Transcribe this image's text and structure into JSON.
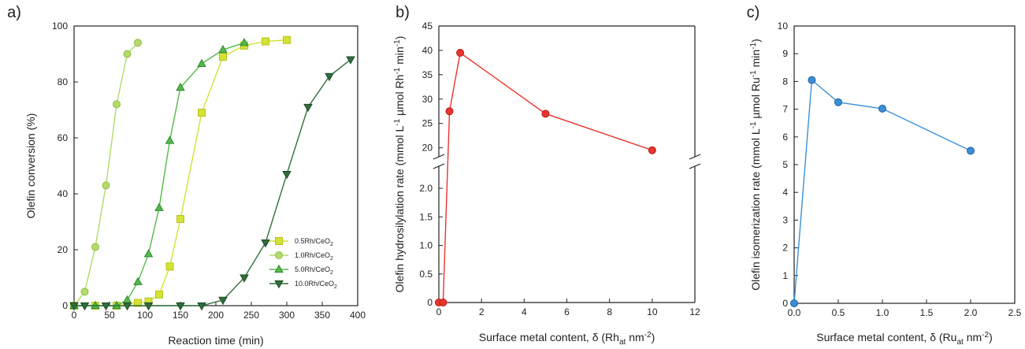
{
  "chart_data": [
    {
      "panel": "a)",
      "type": "line",
      "xlabel": "Reaction time (min)",
      "ylabel": "Olefin conversion (%)",
      "xlim": [
        0,
        400
      ],
      "ylim": [
        0,
        100
      ],
      "xticks": [
        "0",
        "50",
        "100",
        "150",
        "200",
        "250",
        "300",
        "350",
        "400"
      ],
      "yticks": [
        "0",
        "20",
        "40",
        "60",
        "80",
        "100"
      ],
      "legend_position": "bottom-right",
      "series": [
        {
          "name": "0.5Rh/CeO",
          "name_sub": "2",
          "color": "#d4e234",
          "edge": "#b5c41f",
          "marker": "square",
          "x": [
            0,
            30,
            60,
            90,
            105,
            120,
            135,
            150,
            180,
            210,
            240,
            270,
            300
          ],
          "y": [
            0,
            0,
            0,
            1,
            1.5,
            4,
            14,
            31,
            69,
            89,
            93,
            94.5,
            95
          ]
        },
        {
          "name": "1.0Rh/CeO",
          "name_sub": "2",
          "color": "#b4da6c",
          "edge": "#8fbf45",
          "marker": "circle",
          "x": [
            0,
            15,
            30,
            45,
            60,
            75,
            90
          ],
          "y": [
            0,
            5,
            21,
            43,
            72,
            90,
            94
          ]
        },
        {
          "name": "5.0Rh/CeO",
          "name_sub": "2",
          "color": "#54b948",
          "edge": "#2e8b34",
          "marker": "triangle-up",
          "x": [
            0,
            30,
            60,
            75,
            90,
            105,
            120,
            135,
            150,
            180,
            210,
            240
          ],
          "y": [
            0,
            0,
            0,
            2,
            8.5,
            18.5,
            35,
            59,
            78,
            86.5,
            91.5,
            94
          ]
        },
        {
          "name": "10.0Rh/CeO",
          "name_sub": "2",
          "color": "#2f6e3c",
          "edge": "#1c4a26",
          "marker": "triangle-down",
          "x": [
            0,
            15,
            45,
            75,
            105,
            150,
            180,
            210,
            240,
            270,
            300,
            330,
            360,
            390
          ],
          "y": [
            0,
            0,
            0,
            0,
            0,
            0,
            0,
            2,
            10,
            22.5,
            47,
            71,
            82,
            88
          ]
        }
      ]
    },
    {
      "panel": "b)",
      "type": "line",
      "xlabel": "Surface metal content, δ (Rh",
      "xlabel_sub": "at",
      "xlabel_end": " nm",
      "xlabel_sup": "-2",
      "xlabel_close": ")",
      "ylabel": "Olefin hydrosilylation rate (mmol L-1 µmol Rh-1 min-1)",
      "ylabel_parts": [
        "Olefin hydrosilylation rate (mmol L",
        "-1",
        " µmol Rh",
        "-1",
        " min",
        "-1",
        ")"
      ],
      "xlim": [
        0,
        12
      ],
      "ylim_lower": [
        0,
        2.4
      ],
      "ylim_upper": [
        18,
        45
      ],
      "broken_axis": true,
      "xticks": [
        "0",
        "2",
        "4",
        "6",
        "8",
        "10",
        "12"
      ],
      "yticks_lower": [
        "0",
        "0.5",
        "1.0",
        "1.5",
        "2.0"
      ],
      "yticks_upper": [
        "20",
        "25",
        "30",
        "35",
        "40",
        "45"
      ],
      "series": [
        {
          "color": "#e8352e",
          "edge": "#b21e18",
          "marker": "circle",
          "x": [
            0,
            0.2,
            0.5,
            1,
            5,
            10
          ],
          "y": [
            0,
            0,
            27.5,
            39.5,
            27,
            19.5
          ]
        }
      ]
    },
    {
      "panel": "c)",
      "type": "line",
      "xlabel": "Surface metal content, δ (Ru",
      "xlabel_sub": "at",
      "xlabel_end": " nm",
      "xlabel_sup": "-2",
      "xlabel_close": ")",
      "ylabel": "Olefin isomerization rate (mmol L-1 µmol Ru-1 min-1)",
      "ylabel_parts": [
        "Olefin isomerization rate (mmol L",
        "-1",
        " µmol Ru",
        "-1",
        " min",
        "-1",
        ")"
      ],
      "xlim": [
        0,
        2.5
      ],
      "ylim": [
        0,
        10
      ],
      "xticks": [
        "0.0",
        "0.5",
        "1.0",
        "1.5",
        "2.0",
        "2.5"
      ],
      "yticks": [
        "0",
        "1",
        "2",
        "3",
        "4",
        "5",
        "6",
        "7",
        "8",
        "9",
        "10"
      ],
      "series": [
        {
          "color": "#3b8fd6",
          "edge": "#1f5f9e",
          "marker": "circle",
          "x": [
            0,
            0.2,
            0.5,
            1.0,
            2.0
          ],
          "y": [
            0,
            8.05,
            7.25,
            7.02,
            5.5
          ]
        }
      ]
    }
  ]
}
